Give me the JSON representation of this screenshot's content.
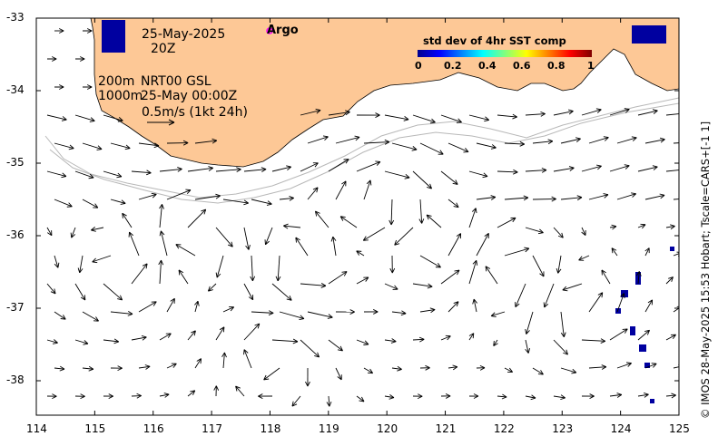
{
  "date_line": "25-May-2025",
  "time_line": "20Z",
  "isobath_a": "200m",
  "isobath_b": "1000m",
  "product": "NRT00 GSL",
  "product_time": "25-May 00:00Z",
  "scale_text": "0.5m/s (1kt 24h)",
  "argo_label": "Argo",
  "colorbar": {
    "title": "std dev of 4hr SST comp",
    "ticks": [
      "0",
      "0.2",
      "0.4",
      "0.6",
      "0.8",
      "1"
    ]
  },
  "credit": "© IMOS 28-May-2025 15:53 Hobart; Tscale=CARS+[-1 1]",
  "axes": {
    "x_ticks": [
      "114",
      "115",
      "116",
      "117",
      "118",
      "119",
      "120",
      "121",
      "122",
      "123",
      "124",
      "125"
    ],
    "y_ticks": [
      "-33",
      "-34",
      "-35",
      "-36",
      "-37",
      "-38"
    ]
  },
  "colors": {
    "land": "#fdc896",
    "coast": "#000000",
    "isobath": "#b8b8b8",
    "argo": "#ff00ff"
  }
}
